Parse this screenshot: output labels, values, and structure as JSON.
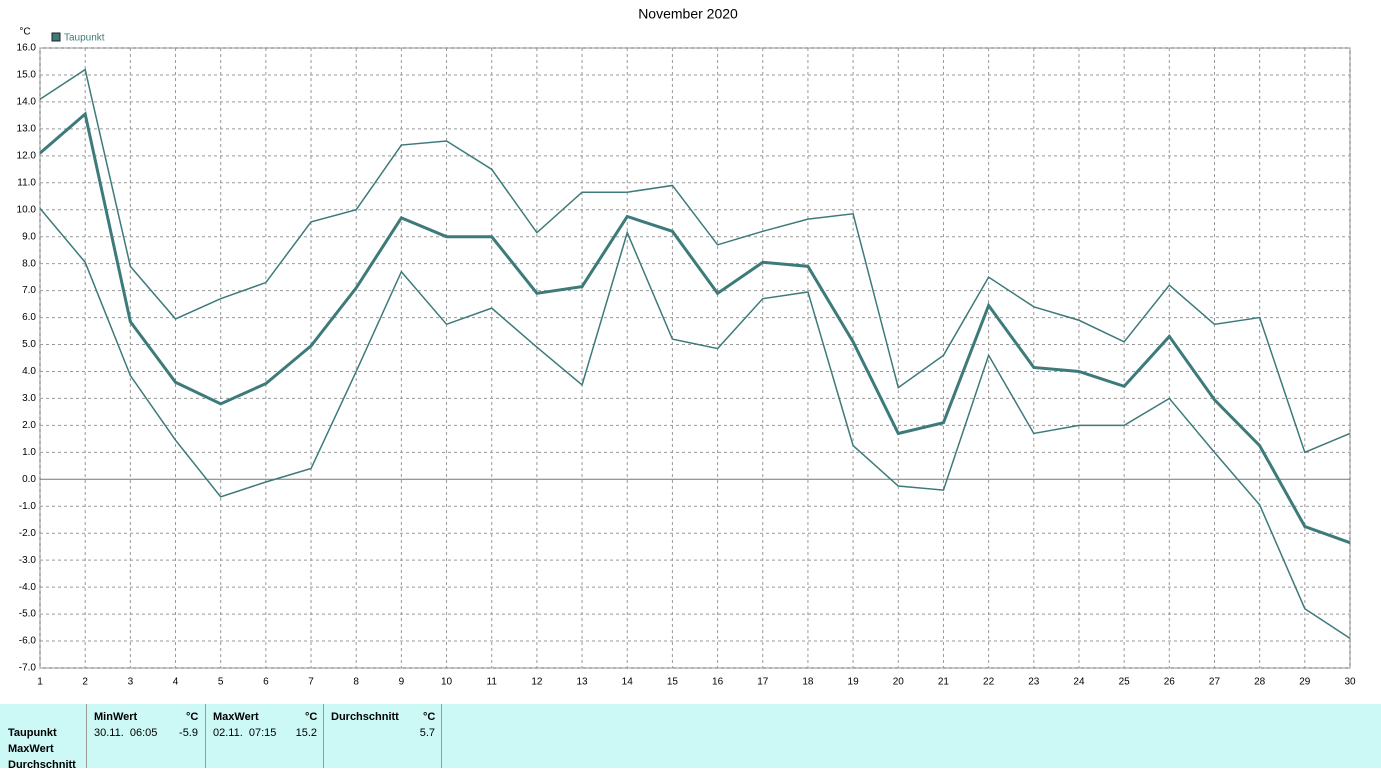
{
  "chart_data": {
    "type": "line",
    "title": "November 2020",
    "y_unit": "°C",
    "x": [
      1,
      2,
      3,
      4,
      5,
      6,
      7,
      8,
      9,
      10,
      11,
      12,
      13,
      14,
      15,
      16,
      17,
      18,
      19,
      20,
      21,
      22,
      23,
      24,
      25,
      26,
      27,
      28,
      29,
      30
    ],
    "xlim": [
      1,
      30
    ],
    "xticks": [
      1,
      2,
      3,
      4,
      5,
      6,
      7,
      8,
      9,
      10,
      11,
      12,
      13,
      14,
      15,
      16,
      17,
      18,
      19,
      20,
      21,
      22,
      23,
      24,
      25,
      26,
      27,
      28,
      29,
      30
    ],
    "ylim": [
      -7,
      16
    ],
    "yticks": [
      {
        "value": 16,
        "label": "16.0"
      },
      {
        "value": 15,
        "label": "15.0"
      },
      {
        "value": 14,
        "label": "14.0"
      },
      {
        "value": 13,
        "label": "13.0"
      },
      {
        "value": 12,
        "label": "12.0"
      },
      {
        "value": 11,
        "label": "11.0"
      },
      {
        "value": 10,
        "label": "10.0"
      },
      {
        "value": 9,
        "label": "9.0"
      },
      {
        "value": 8,
        "label": "8.0"
      },
      {
        "value": 7,
        "label": "7.0"
      },
      {
        "value": 6,
        "label": "6.0"
      },
      {
        "value": 5,
        "label": "5.0"
      },
      {
        "value": 4,
        "label": "4.0"
      },
      {
        "value": 3,
        "label": "3.0"
      },
      {
        "value": 2,
        "label": "2.0"
      },
      {
        "value": 1,
        "label": "1.0"
      },
      {
        "value": 0,
        "label": "0.0"
      },
      {
        "value": -1,
        "label": "-1.0"
      },
      {
        "value": -2,
        "label": "-2.0"
      },
      {
        "value": -3,
        "label": "-3.0"
      },
      {
        "value": -4,
        "label": "-4.0"
      },
      {
        "value": -5,
        "label": "-5.0"
      },
      {
        "value": -6,
        "label": "-6.0"
      },
      {
        "value": -7,
        "label": "-7.0"
      }
    ],
    "grid": true,
    "series": [
      {
        "color": "#3d7a7a",
        "values": [
          14.1,
          15.2,
          7.9,
          5.95,
          6.7,
          7.3,
          9.55,
          10.0,
          12.4,
          12.55,
          11.5,
          9.15,
          10.65,
          10.65,
          10.9,
          8.7,
          9.2,
          9.65,
          9.85,
          3.4,
          4.6,
          7.5,
          6.4,
          5.9,
          5.1,
          7.2,
          5.75,
          6.0,
          1.0,
          1.7
        ]
      },
      {
        "name": "Taupunkt",
        "color": "#3d7a7a",
        "values": [
          12.1,
          13.55,
          5.85,
          3.6,
          2.8,
          3.55,
          4.95,
          7.1,
          9.7,
          9.0,
          9.0,
          6.9,
          7.15,
          9.75,
          9.2,
          6.9,
          8.05,
          7.9,
          5.1,
          1.7,
          2.1,
          6.45,
          4.15,
          4.0,
          3.45,
          5.3,
          2.95,
          1.25,
          -1.75,
          -2.35
        ]
      },
      {
        "color": "#3d7a7a",
        "values": [
          10.05,
          8.05,
          3.85,
          1.45,
          -0.65,
          -0.1,
          0.4,
          4.0,
          7.7,
          5.75,
          6.35,
          4.9,
          3.5,
          9.15,
          5.2,
          4.85,
          6.7,
          6.95,
          1.25,
          -0.25,
          -0.4,
          4.6,
          1.7,
          2.0,
          2.0,
          3.0,
          1.0,
          -0.95,
          -4.8,
          -5.9
        ]
      }
    ]
  },
  "table": {
    "row_labels": [
      "Taupunkt",
      "MaxWert",
      "Durchschnitt"
    ],
    "columns": [
      {
        "header": "MinWert",
        "unit": "°C",
        "time": "30.11.  06:05",
        "value": "-5.9"
      },
      {
        "header": "MaxWert",
        "unit": "°C",
        "time": "02.11.  07:15",
        "value": "15.2"
      },
      {
        "header": "Durchschnitt",
        "unit": "°C",
        "value": "5.7"
      }
    ]
  }
}
